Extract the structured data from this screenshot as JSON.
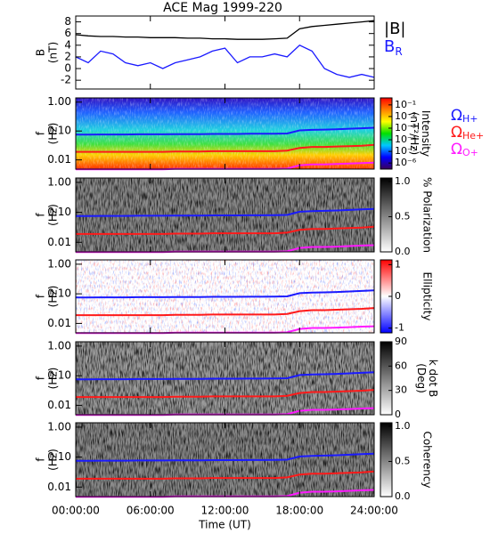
{
  "chart_data": [
    {
      "type": "line",
      "title": "ACE Mag 1999-220",
      "ylabel": [
        "B",
        "(nT)"
      ],
      "x": [
        0,
        1,
        2,
        3,
        4,
        5,
        6,
        7,
        8,
        9,
        10,
        11,
        12,
        13,
        14,
        15,
        16,
        17,
        18,
        19,
        20,
        21,
        22,
        23,
        24
      ],
      "xlim": [
        0,
        24
      ],
      "xlabel": "Time (UT)",
      "xticks": [
        {
          "value": 0,
          "label": "00:00:00"
        },
        {
          "value": 6,
          "label": "06:00:00"
        },
        {
          "value": 12,
          "label": "12:00:00"
        },
        {
          "value": 18,
          "label": "18:00:00"
        },
        {
          "value": 24,
          "label": "24:00:00"
        }
      ],
      "ylim": [
        -3.5,
        9
      ],
      "yticks": [
        -2,
        0,
        2,
        4,
        6,
        8
      ],
      "series": [
        {
          "name": "|B|",
          "color": "#000000",
          "values": [
            5.8,
            5.6,
            5.5,
            5.5,
            5.4,
            5.4,
            5.3,
            5.3,
            5.3,
            5.2,
            5.2,
            5.1,
            5.1,
            5.0,
            5.0,
            5.0,
            5.1,
            5.2,
            6.8,
            7.2,
            7.4,
            7.6,
            7.8,
            8.0,
            8.2
          ]
        },
        {
          "name": "B",
          "subscript": "R",
          "color": "#1a1aff",
          "values": [
            2,
            1,
            3,
            2.5,
            1,
            0.5,
            1,
            0,
            1,
            1.5,
            2,
            3,
            3.5,
            1,
            2,
            2,
            2.5,
            2,
            4,
            3,
            0,
            -1,
            -1.5,
            -1,
            -1.5
          ]
        }
      ]
    },
    {
      "type": "spectrogram",
      "ylabel": [
        "f",
        "(Hz)"
      ],
      "log_y": true,
      "ylim": [
        0.0048,
        1.4
      ],
      "yticks": [
        {
          "value": 1,
          "label": "1.00"
        },
        {
          "value": 0.1,
          "label": "0.10"
        },
        {
          "value": 0.01,
          "label": "0.01"
        }
      ],
      "x": [
        0,
        1,
        2,
        3,
        4,
        5,
        6,
        7,
        8,
        9,
        10,
        11,
        12,
        13,
        14,
        15,
        16,
        17,
        18,
        19,
        20,
        21,
        22,
        23,
        24
      ],
      "series": [
        {
          "name": "Ω",
          "subscript": "H+",
          "color": "#1a1aff",
          "values": [
            0.075,
            0.075,
            0.076,
            0.076,
            0.076,
            0.077,
            0.077,
            0.077,
            0.078,
            0.078,
            0.078,
            0.079,
            0.079,
            0.079,
            0.08,
            0.08,
            0.081,
            0.082,
            0.105,
            0.11,
            0.112,
            0.115,
            0.12,
            0.125,
            0.13
          ]
        },
        {
          "name": "Ω",
          "subscript": "He+",
          "color": "#ff1a1a",
          "values": [
            0.019,
            0.019,
            0.019,
            0.019,
            0.019,
            0.019,
            0.019,
            0.019,
            0.0195,
            0.0195,
            0.0195,
            0.02,
            0.02,
            0.02,
            0.02,
            0.02,
            0.02,
            0.021,
            0.026,
            0.028,
            0.028,
            0.029,
            0.03,
            0.031,
            0.033
          ]
        },
        {
          "name": "Ω",
          "subscript": "O+",
          "color": "#ff1aff",
          "values": [
            0.0047,
            0.0047,
            0.0047,
            0.0047,
            0.0047,
            0.0047,
            0.0047,
            0.0047,
            0.0049,
            0.0049,
            0.0049,
            0.0049,
            0.0049,
            0.0049,
            0.0049,
            0.0049,
            0.0049,
            0.005,
            0.0065,
            0.007,
            0.007,
            0.0072,
            0.0075,
            0.0078,
            0.008
          ]
        }
      ],
      "colorbar": {
        "label": [
          "Intensity",
          "(nT²/Hz)"
        ],
        "log": true,
        "clim": [
          3e-07,
          0.4
        ],
        "colors": [
          "#3a005a",
          "#0000ff",
          "#00c8ff",
          "#00e000",
          "#ffff00",
          "#ff8000",
          "#ff0000"
        ],
        "ticks": [
          {
            "value": 0.1,
            "label": "10⁻¹"
          },
          {
            "value": 0.01,
            "label": "10⁻²"
          },
          {
            "value": 0.001,
            "label": "10⁻³"
          },
          {
            "value": 0.0001,
            "label": "10⁻⁴"
          },
          {
            "value": 1e-05,
            "label": "10⁻⁵"
          },
          {
            "value": 1e-06,
            "label": "10⁻⁶"
          }
        ]
      }
    },
    {
      "type": "spectrogram",
      "ylabel": [
        "f",
        "(Hz)"
      ],
      "colorbar": {
        "label": [
          "% Polarization"
        ],
        "clim": [
          0,
          1.05
        ],
        "colors": [
          "#ffffff",
          "#000000"
        ],
        "ticks": [
          {
            "value": 0,
            "label": "0.0"
          },
          {
            "value": 0.5,
            "label": "0.5"
          },
          {
            "value": 1,
            "label": "1.0"
          }
        ]
      }
    },
    {
      "type": "spectrogram",
      "ylabel": [
        "f",
        "(Hz)"
      ],
      "colorbar": {
        "label": [
          "Ellipticity"
        ],
        "clim": [
          -1.15,
          1.15
        ],
        "colors": [
          "#0000ff",
          "#ffffff",
          "#ff0000"
        ],
        "ticks": [
          -1,
          0,
          1
        ]
      }
    },
    {
      "type": "spectrogram",
      "ylabel": [
        "f",
        "(Hz)"
      ],
      "colorbar": {
        "label": [
          "k dot B",
          "(Deg)"
        ],
        "clim": [
          0,
          90
        ],
        "colors": [
          "#ffffff",
          "#000000"
        ],
        "ticks": [
          0,
          30,
          60,
          90
        ]
      }
    },
    {
      "type": "spectrogram",
      "ylabel": [
        "f",
        "(Hz)"
      ],
      "colorbar": {
        "label": [
          "Coherency"
        ],
        "clim": [
          0,
          1.05
        ],
        "colors": [
          "#ffffff",
          "#000000"
        ],
        "ticks": [
          {
            "value": 0,
            "label": "0.0"
          },
          {
            "value": 0.5,
            "label": "0.5"
          },
          {
            "value": 1,
            "label": "1.0"
          }
        ]
      }
    }
  ]
}
